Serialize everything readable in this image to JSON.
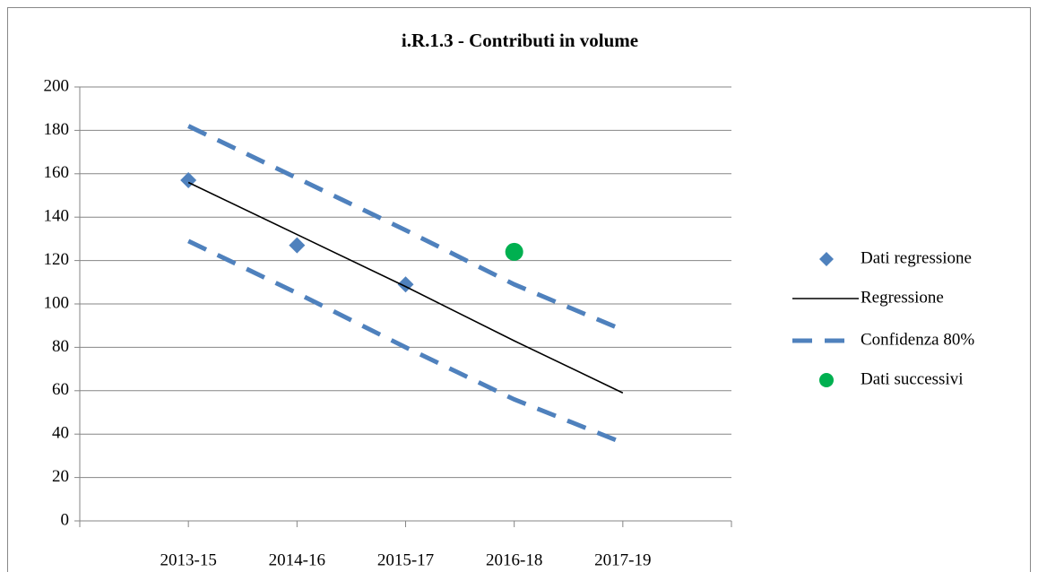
{
  "chart_data": {
    "type": "line",
    "title": "i.R.1.3 - Contributi in volume",
    "categories": [
      null,
      "2013-15",
      "2014-16",
      "2015-17",
      "2016-18",
      "2017-19",
      null
    ],
    "ylim": [
      0,
      200
    ],
    "yticks": [
      0,
      20,
      40,
      60,
      80,
      100,
      120,
      140,
      160,
      180,
      200
    ],
    "grid": true,
    "legend": "right",
    "series": [
      {
        "name": "Dati regressione",
        "color": "#4f81bd",
        "marker": "diamond",
        "values": [
          null,
          157,
          127,
          109,
          null,
          null,
          null
        ]
      },
      {
        "name": "Regressione",
        "color": "#000000",
        "line_style": "solid",
        "values": [
          null,
          156,
          132,
          108,
          83,
          59,
          null
        ]
      },
      {
        "name": "Confidenza 80%",
        "color": "#4f81bd",
        "line_style": "dashed",
        "values": [
          null,
          182,
          158,
          134,
          109,
          88,
          null
        ],
        "lower_values": [
          null,
          129,
          105,
          80,
          56,
          36,
          null
        ]
      },
      {
        "name": "Dati successivi",
        "color": "#00b050",
        "marker": "circle",
        "values": [
          null,
          null,
          null,
          null,
          124,
          null,
          null
        ]
      }
    ]
  }
}
